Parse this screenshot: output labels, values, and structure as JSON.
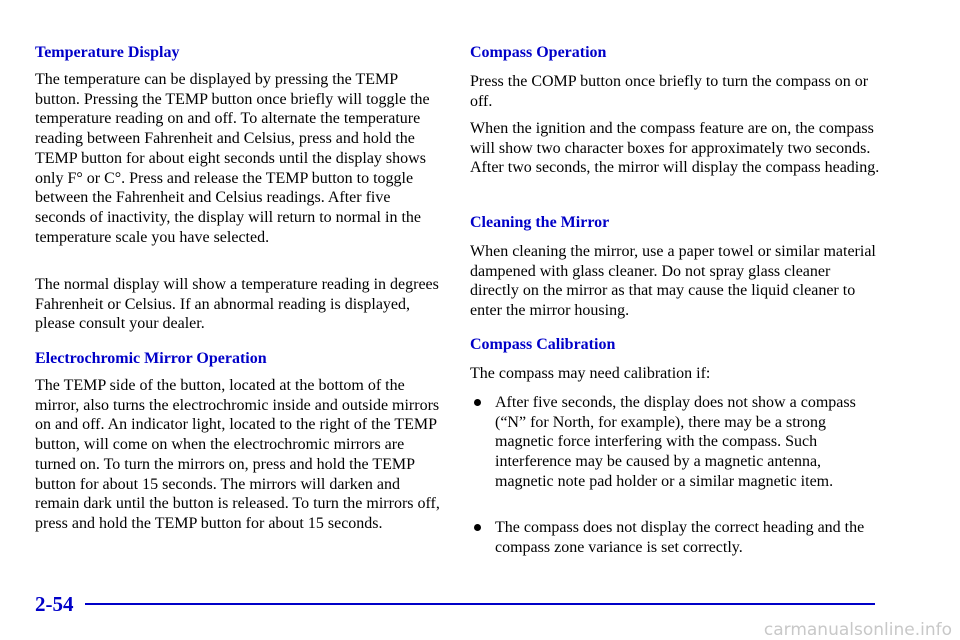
{
  "left": [
    {
      "heading": "Temperature Display",
      "paragraphs": [
        "The temperature can be displayed by pressing the TEMP button. Pressing the TEMP button once briefly will toggle the temperature reading on and off. To alternate the temperature reading between Fahrenheit and Celsius, press and hold the TEMP button for about eight seconds until the display shows only F° or C°. Press and release the TEMP button to toggle between the Fahrenheit and Celsius readings. After five seconds of inactivity, the display will return to normal in the temperature scale you have selected.",
        "The normal display will show a temperature reading in degrees Fahrenheit or Celsius. If an abnormal reading is displayed, please consult your dealer."
      ]
    },
    {
      "heading": "Electrochromic Mirror Operation",
      "paragraphs": [
        "The TEMP side of the button, located at the bottom of the mirror, also turns the electrochromic inside and outside mirrors on and off. An indicator light, located to the right of the TEMP button, will come on when the electrochromic mirrors are turned on. To turn the mirrors on, press and hold the TEMP button for about 15 seconds. The mirrors will darken and remain dark until the button is released. To turn the mirrors off, press and hold the TEMP button for about 15 seconds."
      ]
    }
  ],
  "right": [
    {
      "heading": "Compass Operation",
      "paragraphs": [
        "Press the COMP button once briefly to turn the compass on or off.",
        "When the ignition and the compass feature are on, the compass will show two character boxes for approximately two seconds. After two seconds, the mirror will display the compass heading."
      ]
    },
    {
      "heading": "Cleaning the Mirror",
      "paragraphs": [
        "When cleaning the mirror, use a paper towel or similar material dampened with glass cleaner. Do not spray glass cleaner directly on the mirror as that may cause the liquid cleaner to enter the mirror housing."
      ]
    },
    {
      "heading": "Compass Calibration",
      "paragraphs": [
        "The compass may need calibration if:"
      ],
      "bullets": [
        "After five seconds, the display does not show a compass (“N” for North, for example), there may be a strong magnetic force interfering with the compass. Such interference may be caused by a magnetic antenna, magnetic note pad holder or a similar magnetic item.",
        "The compass does not display the correct heading and the compass zone variance is set correctly."
      ]
    }
  ],
  "footer": {
    "page_number": "2-54"
  },
  "watermark": "carmanualsonline.info"
}
